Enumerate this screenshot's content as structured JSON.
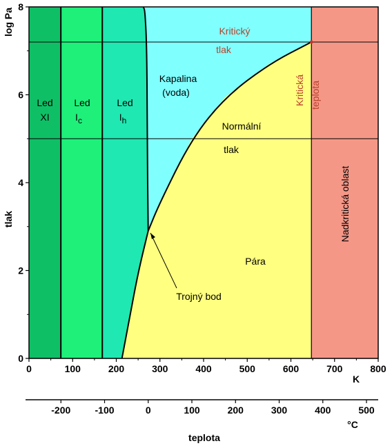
{
  "colors": {
    "ice_xi": "#0fbf66",
    "ice_ic": "#1ef07a",
    "ice_ih": "#1fe8b2",
    "liquid": "#80ffff",
    "vapor": "#ffff80",
    "supercritical": "#f59787",
    "critical_text": "#b8412a"
  },
  "axes": {
    "y_unit": "log Pa",
    "y_label": "tlak",
    "x_unit_K": "K",
    "x_unit_C": "°C",
    "x_label": "teplota",
    "y_ticks": [
      "0",
      "2",
      "4",
      "6",
      "8"
    ],
    "x_ticks_K": [
      "0",
      "100",
      "200",
      "300",
      "400",
      "500",
      "600",
      "700",
      "800"
    ],
    "x_ticks_C": [
      "-200",
      "-100",
      "0",
      "100",
      "200",
      "300",
      "400",
      "500"
    ]
  },
  "regions": {
    "ice_xi": [
      "Led",
      "XI"
    ],
    "ice_ic": [
      "Led",
      "I",
      "c"
    ],
    "ice_ih": [
      "Led",
      "I",
      "h"
    ],
    "liquid": [
      "Kapalina",
      "(voda)"
    ],
    "vapor": "Pára",
    "supercritical": "Nadkritická oblast"
  },
  "labels": {
    "normal_pressure": [
      "Normální",
      "tlak"
    ],
    "critical_pressure": [
      "Kritický",
      "tlak"
    ],
    "critical_temperature": [
      "Kritická",
      "teplota"
    ],
    "triple_point": "Trojný bod"
  },
  "chart_data": {
    "type": "phase_diagram",
    "x_range_K": [
      0,
      800
    ],
    "y_range_log_pa": [
      0,
      8
    ],
    "x_range_C": [
      -273.15,
      526.85
    ],
    "boundaries_K": {
      "ice_xi_ic": 73,
      "ice_ic_ih": 168,
      "critical_temperature": 647
    },
    "normal_pressure_log_pa": 5.0,
    "critical_pressure_log_pa": 7.2,
    "triple_point": {
      "T_K": 273,
      "log_pa": 2.9
    },
    "critical_point": {
      "T_K": 647,
      "log_pa": 7.2
    },
    "sublimation_curve": [
      [
        213,
        0.0
      ],
      [
        230,
        0.9
      ],
      [
        250,
        1.95
      ],
      [
        273,
        2.9
      ]
    ],
    "vaporization_curve": [
      [
        273,
        2.9
      ],
      [
        300,
        3.55
      ],
      [
        373,
        5.0
      ],
      [
        450,
        5.95
      ],
      [
        550,
        6.7
      ],
      [
        647,
        7.2
      ]
    ],
    "melting_curve": [
      [
        273,
        2.9
      ],
      [
        271,
        5.0
      ],
      [
        270,
        7.0
      ],
      [
        266,
        7.9
      ],
      [
        262,
        8.0
      ]
    ]
  }
}
